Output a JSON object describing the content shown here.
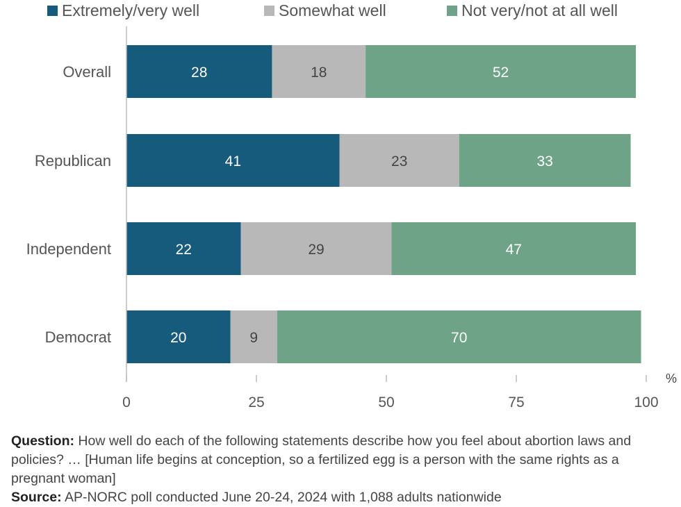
{
  "legend": [
    {
      "label": "Extremely/very well",
      "color": "#165b7c"
    },
    {
      "label": "Somewhat well",
      "color": "#b8b8b8"
    },
    {
      "label": "Not very/not at all well",
      "color": "#6fa388"
    }
  ],
  "chart_data": {
    "type": "bar",
    "orientation": "horizontal",
    "stacked": true,
    "categories": [
      "Overall",
      "Republican",
      "Independent",
      "Democrat"
    ],
    "series": [
      {
        "name": "Extremely/very well",
        "values": [
          28,
          41,
          22,
          20
        ],
        "color": "#165b7c"
      },
      {
        "name": "Somewhat well",
        "values": [
          18,
          23,
          29,
          9
        ],
        "color": "#b8b8b8"
      },
      {
        "name": "Not very/not at all well",
        "values": [
          52,
          33,
          47,
          70
        ],
        "color": "#6fa388"
      }
    ],
    "xlim": [
      0,
      100
    ],
    "xticks": [
      0,
      25,
      50,
      75,
      100
    ],
    "unit_label": "%",
    "legend_position": "top",
    "grid": false
  },
  "footnote": {
    "question_label": "Question:",
    "question_text": "How well do each of the following statements describe how you feel about abortion laws and policies? … [Human life begins at conception, so a fertilized egg is a person with the same rights as a pregnant woman]",
    "source_label": "Source:",
    "source_text": "AP-NORC poll conducted June 20-24, 2024 with 1,088 adults nationwide"
  }
}
